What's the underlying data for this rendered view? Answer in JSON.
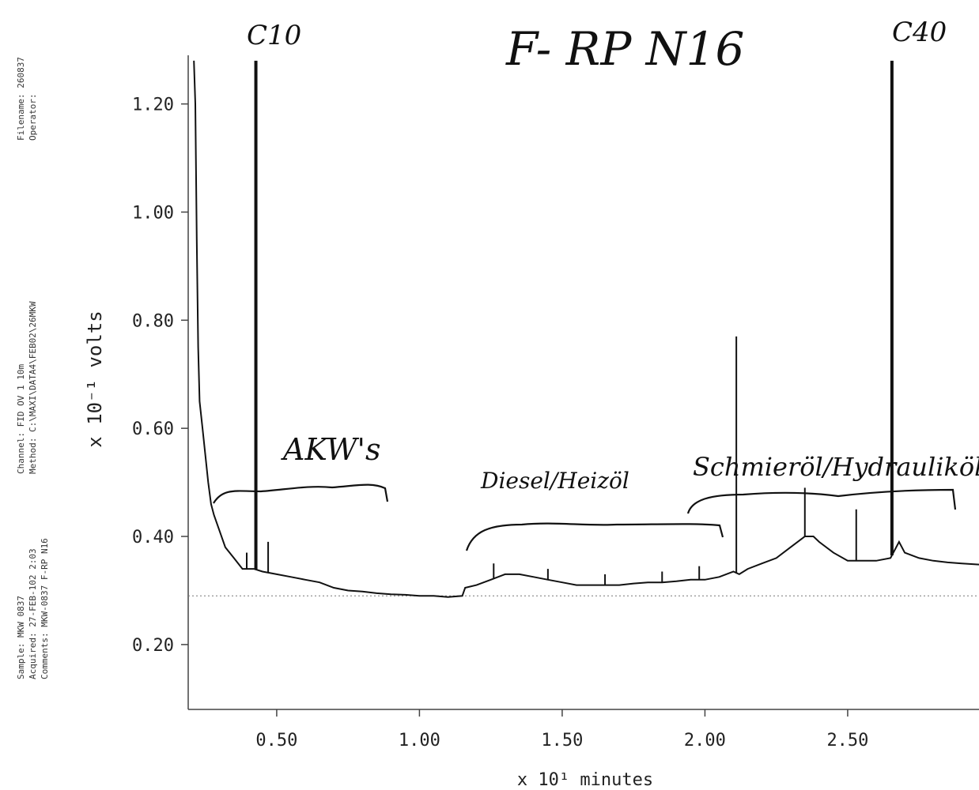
{
  "chart_data": {
    "type": "line",
    "title": "F- RP N16",
    "xlabel": "x 10¹ minutes",
    "ylabel": "x 10⁻¹ volts",
    "xlim": [
      0.19,
      2.96
    ],
    "ylim": [
      0.08,
      1.29
    ],
    "grid": false,
    "x_ticks": [
      0.5,
      1.0,
      1.5,
      2.0,
      2.5
    ],
    "x_tick_labels": [
      "0.50",
      "1.00",
      "1.50",
      "2.00",
      "2.50"
    ],
    "y_ticks": [
      0.2,
      0.4,
      0.6,
      0.8,
      1.0,
      1.2
    ],
    "y_tick_labels": [
      "0.20",
      "0.40",
      "0.60",
      "0.80",
      "1.00",
      "1.20"
    ],
    "baseline_y": 0.29,
    "series": [
      {
        "x": [
          0.21,
          0.215,
          0.22,
          0.225,
          0.23,
          0.24,
          0.25,
          0.26,
          0.27,
          0.28,
          0.3,
          0.32,
          0.35,
          0.38,
          0.4,
          0.42,
          0.45,
          0.5,
          0.55,
          0.6,
          0.65,
          0.7,
          0.75,
          0.8,
          0.85,
          0.9,
          0.95,
          1.0,
          1.05,
          1.1,
          1.15,
          1.16,
          1.2,
          1.25,
          1.3,
          1.35,
          1.4,
          1.45,
          1.5,
          1.55,
          1.6,
          1.65,
          1.7,
          1.75,
          1.8,
          1.85,
          1.9,
          1.95,
          2.0,
          2.05,
          2.1,
          2.12,
          2.15,
          2.2,
          2.25,
          2.3,
          2.35,
          2.38,
          2.4,
          2.45,
          2.5,
          2.55,
          2.6,
          2.65,
          2.68,
          2.7,
          2.75,
          2.8,
          2.85,
          2.9,
          2.96
        ],
        "y": [
          1.28,
          1.2,
          0.95,
          0.75,
          0.65,
          0.6,
          0.55,
          0.5,
          0.46,
          0.44,
          0.41,
          0.38,
          0.36,
          0.34,
          0.34,
          0.34,
          0.335,
          0.33,
          0.325,
          0.32,
          0.315,
          0.305,
          0.3,
          0.298,
          0.295,
          0.293,
          0.292,
          0.29,
          0.29,
          0.288,
          0.29,
          0.305,
          0.31,
          0.32,
          0.33,
          0.33,
          0.325,
          0.32,
          0.315,
          0.31,
          0.31,
          0.31,
          0.31,
          0.313,
          0.315,
          0.315,
          0.317,
          0.32,
          0.32,
          0.325,
          0.335,
          0.33,
          0.34,
          0.35,
          0.36,
          0.38,
          0.4,
          0.4,
          0.39,
          0.37,
          0.355,
          0.355,
          0.355,
          0.36,
          0.39,
          0.37,
          0.36,
          0.355,
          0.352,
          0.35,
          0.348
        ]
      }
    ],
    "peaks": [
      {
        "x": 0.427,
        "y": 1.28
      },
      {
        "x": 0.47,
        "y": 0.39
      },
      {
        "x": 0.395,
        "y": 0.37
      },
      {
        "x": 2.11,
        "y": 0.77
      },
      {
        "x": 2.35,
        "y": 0.49
      },
      {
        "x": 2.53,
        "y": 0.45
      },
      {
        "x": 2.655,
        "y": 1.28
      },
      {
        "x": 1.26,
        "y": 0.35
      },
      {
        "x": 1.45,
        "y": 0.34
      },
      {
        "x": 1.65,
        "y": 0.33
      },
      {
        "x": 1.85,
        "y": 0.335
      },
      {
        "x": 1.98,
        "y": 0.345
      }
    ]
  },
  "annotations": {
    "title": "F- RP N16",
    "c10": "C10",
    "c40": "C40",
    "group1": "AKW's",
    "group2": "Diesel/Heizöl",
    "group3": "Schmieröl/Hydrauliköl"
  },
  "sidebar": {
    "filename": "Filename: 260837",
    "operator": "Operator:",
    "channel": "Channel: FID OV 1 10m",
    "method": "Method: C:\\MAXI\\DATA4\\FEB02\\26MKW",
    "sample": "Sample: MKW 0837",
    "acquired": "Acquired: 27-FEB-102    2:03",
    "comments": "Comments: MKW-0837    F-RP N16"
  }
}
